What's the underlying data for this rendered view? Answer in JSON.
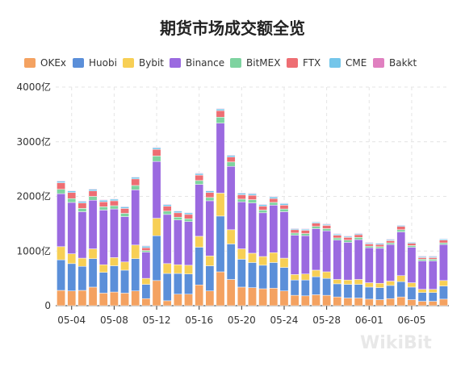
{
  "chart_data": {
    "type": "bar",
    "stacked": true,
    "title": "期货市场成交额全览",
    "legend_position": "top",
    "yticks": [
      "0",
      "1000亿",
      "2000亿",
      "3000亿",
      "4000亿"
    ],
    "ylim": [
      0,
      4000
    ],
    "xtick_labels": [
      "05-04",
      "05-08",
      "05-12",
      "05-16",
      "05-20",
      "05-24",
      "05-28",
      "06-01",
      "06-05"
    ],
    "xtick_every": 4,
    "grid": true,
    "watermark": "WikiBit",
    "categories": [
      "05-03",
      "05-04",
      "05-05",
      "05-06",
      "05-07",
      "05-08",
      "05-09",
      "05-10",
      "05-11",
      "05-12",
      "05-13",
      "05-14",
      "05-15",
      "05-16",
      "05-17",
      "05-18",
      "05-19",
      "05-20",
      "05-21",
      "05-22",
      "05-23",
      "05-24",
      "05-25",
      "05-26",
      "05-27",
      "05-28",
      "05-29",
      "05-30",
      "05-31",
      "06-01",
      "06-02",
      "06-03",
      "06-04",
      "06-05",
      "06-06",
      "06-07",
      "06-08"
    ],
    "series": [
      {
        "name": "OKEx",
        "color": "#f4a261",
        "values": [
          280,
          270,
          280,
          340,
          230,
          250,
          230,
          270,
          130,
          460,
          90,
          210,
          210,
          380,
          270,
          620,
          480,
          340,
          330,
          310,
          320,
          270,
          190,
          180,
          200,
          190,
          160,
          140,
          140,
          120,
          110,
          130,
          160,
          110,
          80,
          80,
          120
        ]
      },
      {
        "name": "Huobi",
        "color": "#5b8fd9",
        "values": [
          560,
          500,
          440,
          520,
          380,
          480,
          420,
          590,
          260,
          820,
          500,
          380,
          370,
          690,
          460,
          1020,
          650,
          510,
          460,
          430,
          470,
          430,
          280,
          290,
          330,
          310,
          240,
          250,
          250,
          220,
          220,
          240,
          280,
          230,
          160,
          160,
          240
        ]
      },
      {
        "name": "Bybit",
        "color": "#f7cf55",
        "values": [
          240,
          180,
          150,
          180,
          140,
          150,
          150,
          250,
          110,
          320,
          180,
          160,
          160,
          200,
          180,
          420,
          260,
          190,
          170,
          160,
          180,
          170,
          100,
          110,
          120,
          120,
          80,
          80,
          90,
          80,
          80,
          80,
          110,
          80,
          60,
          60,
          100
        ]
      },
      {
        "name": "Binance",
        "color": "#9b6ae0",
        "values": [
          970,
          940,
          850,
          890,
          1000,
          890,
          830,
          1010,
          480,
          1040,
          900,
          820,
          800,
          950,
          1010,
          1280,
          1160,
          860,
          920,
          800,
          870,
          850,
          720,
          700,
          760,
          750,
          720,
          690,
          730,
          640,
          640,
          670,
          800,
          650,
          520,
          520,
          660
        ]
      },
      {
        "name": "BitMEX",
        "color": "#7ed3a0",
        "values": [
          80,
          70,
          60,
          70,
          60,
          60,
          60,
          80,
          30,
          100,
          60,
          50,
          50,
          70,
          60,
          110,
          80,
          50,
          60,
          50,
          50,
          50,
          40,
          40,
          40,
          40,
          40,
          40,
          40,
          30,
          30,
          30,
          40,
          30,
          30,
          30,
          30
        ]
      },
      {
        "name": "FTX",
        "color": "#ee6e73",
        "values": [
          120,
          110,
          100,
          100,
          90,
          90,
          90,
          120,
          50,
          120,
          90,
          80,
          80,
          100,
          90,
          120,
          90,
          80,
          80,
          70,
          70,
          70,
          60,
          60,
          60,
          60,
          50,
          50,
          50,
          40,
          40,
          40,
          60,
          40,
          30,
          30,
          50
        ]
      },
      {
        "name": "CME",
        "color": "#74c6ea",
        "values": [
          30,
          30,
          30,
          30,
          30,
          30,
          30,
          30,
          30,
          30,
          30,
          30,
          30,
          30,
          30,
          30,
          30,
          30,
          30,
          30,
          30,
          30,
          20,
          20,
          20,
          20,
          20,
          20,
          20,
          20,
          20,
          20,
          20,
          20,
          20,
          20,
          20
        ]
      },
      {
        "name": "Bakkt",
        "color": "#e080c0",
        "values": [
          10,
          10,
          10,
          10,
          10,
          10,
          10,
          10,
          10,
          10,
          10,
          10,
          10,
          10,
          10,
          10,
          10,
          10,
          10,
          10,
          10,
          10,
          10,
          10,
          10,
          10,
          10,
          10,
          10,
          10,
          10,
          10,
          10,
          10,
          10,
          10,
          10
        ]
      }
    ]
  }
}
